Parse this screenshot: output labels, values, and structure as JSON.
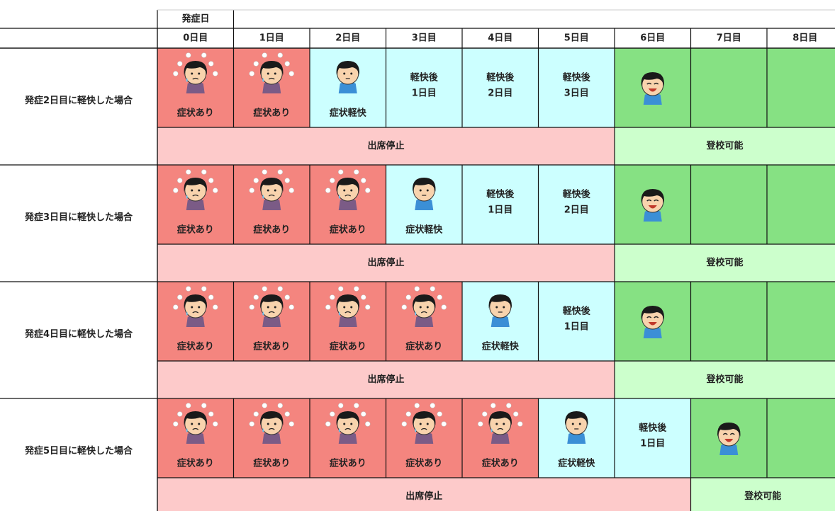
{
  "header": {
    "onset": "発症日",
    "days": [
      "0日目",
      "1日目",
      "2日目",
      "3日目",
      "4日目",
      "5日目",
      "6日目",
      "7日目",
      "8日目"
    ]
  },
  "rows": [
    {
      "label": "発症2日目に軽快した場合",
      "cells": [
        {
          "color": "#f4857f",
          "icon": "sick",
          "text": [
            "症状あり"
          ]
        },
        {
          "color": "#f4857f",
          "icon": "sick",
          "text": [
            "症状あり"
          ]
        },
        {
          "color": "#ccffff",
          "icon": "mild",
          "text": [
            "症状軽快"
          ]
        },
        {
          "color": "#ccffff",
          "text": [
            "軽快後",
            "1日目"
          ]
        },
        {
          "color": "#ccffff",
          "text": [
            "軽快後",
            "2日目"
          ]
        },
        {
          "color": "#ccffff",
          "text": [
            "軽快後",
            "3日目"
          ]
        },
        {
          "color": "#86e183",
          "icon": "happy"
        },
        {
          "color": "#86e183"
        },
        {
          "color": "#86e183"
        }
      ],
      "status": [
        {
          "text": "出席停止",
          "span": 6,
          "color": "#fdcaca"
        },
        {
          "text": "登校可能",
          "span": 3,
          "color": "#ccffcc"
        }
      ]
    },
    {
      "label": "発症3日目に軽快した場合",
      "cells": [
        {
          "color": "#f4857f",
          "icon": "sick",
          "text": [
            "症状あり"
          ]
        },
        {
          "color": "#f4857f",
          "icon": "sick",
          "text": [
            "症状あり"
          ]
        },
        {
          "color": "#f4857f",
          "icon": "sick",
          "text": [
            "症状あり"
          ]
        },
        {
          "color": "#ccffff",
          "icon": "mild",
          "text": [
            "症状軽快"
          ]
        },
        {
          "color": "#ccffff",
          "text": [
            "軽快後",
            "1日目"
          ]
        },
        {
          "color": "#ccffff",
          "text": [
            "軽快後",
            "2日目"
          ]
        },
        {
          "color": "#86e183",
          "icon": "happy"
        },
        {
          "color": "#86e183"
        },
        {
          "color": "#86e183"
        }
      ],
      "status": [
        {
          "text": "出席停止",
          "span": 6,
          "color": "#fdcaca"
        },
        {
          "text": "登校可能",
          "span": 3,
          "color": "#ccffcc"
        }
      ]
    },
    {
      "label": "発症4日目に軽快した場合",
      "cells": [
        {
          "color": "#f4857f",
          "icon": "sick",
          "text": [
            "症状あり"
          ]
        },
        {
          "color": "#f4857f",
          "icon": "sick",
          "text": [
            "症状あり"
          ]
        },
        {
          "color": "#f4857f",
          "icon": "sick",
          "text": [
            "症状あり"
          ]
        },
        {
          "color": "#f4857f",
          "icon": "sick",
          "text": [
            "症状あり"
          ]
        },
        {
          "color": "#ccffff",
          "icon": "mild",
          "text": [
            "症状軽快"
          ]
        },
        {
          "color": "#ccffff",
          "text": [
            "軽快後",
            "1日目"
          ]
        },
        {
          "color": "#86e183",
          "icon": "happy"
        },
        {
          "color": "#86e183"
        },
        {
          "color": "#86e183"
        }
      ],
      "status": [
        {
          "text": "出席停止",
          "span": 6,
          "color": "#fdcaca"
        },
        {
          "text": "登校可能",
          "span": 3,
          "color": "#ccffcc"
        }
      ]
    },
    {
      "label": "発症5日目に軽快した場合",
      "cells": [
        {
          "color": "#f4857f",
          "icon": "sick",
          "text": [
            "症状あり"
          ]
        },
        {
          "color": "#f4857f",
          "icon": "sick",
          "text": [
            "症状あり"
          ]
        },
        {
          "color": "#f4857f",
          "icon": "sick",
          "text": [
            "症状あり"
          ]
        },
        {
          "color": "#f4857f",
          "icon": "sick",
          "text": [
            "症状あり"
          ]
        },
        {
          "color": "#f4857f",
          "icon": "sick",
          "text": [
            "症状あり"
          ]
        },
        {
          "color": "#ccffff",
          "icon": "mild",
          "text": [
            "症状軽快"
          ]
        },
        {
          "color": "#ccffff",
          "text": [
            "軽快後",
            "1日目"
          ]
        },
        {
          "color": "#86e183",
          "icon": "happy"
        },
        {
          "color": "#86e183"
        }
      ],
      "status": [
        {
          "text": "出席停止",
          "span": 7,
          "color": "#fdcaca"
        },
        {
          "text": "登校可能",
          "span": 2,
          "color": "#ccffcc"
        }
      ]
    }
  ]
}
